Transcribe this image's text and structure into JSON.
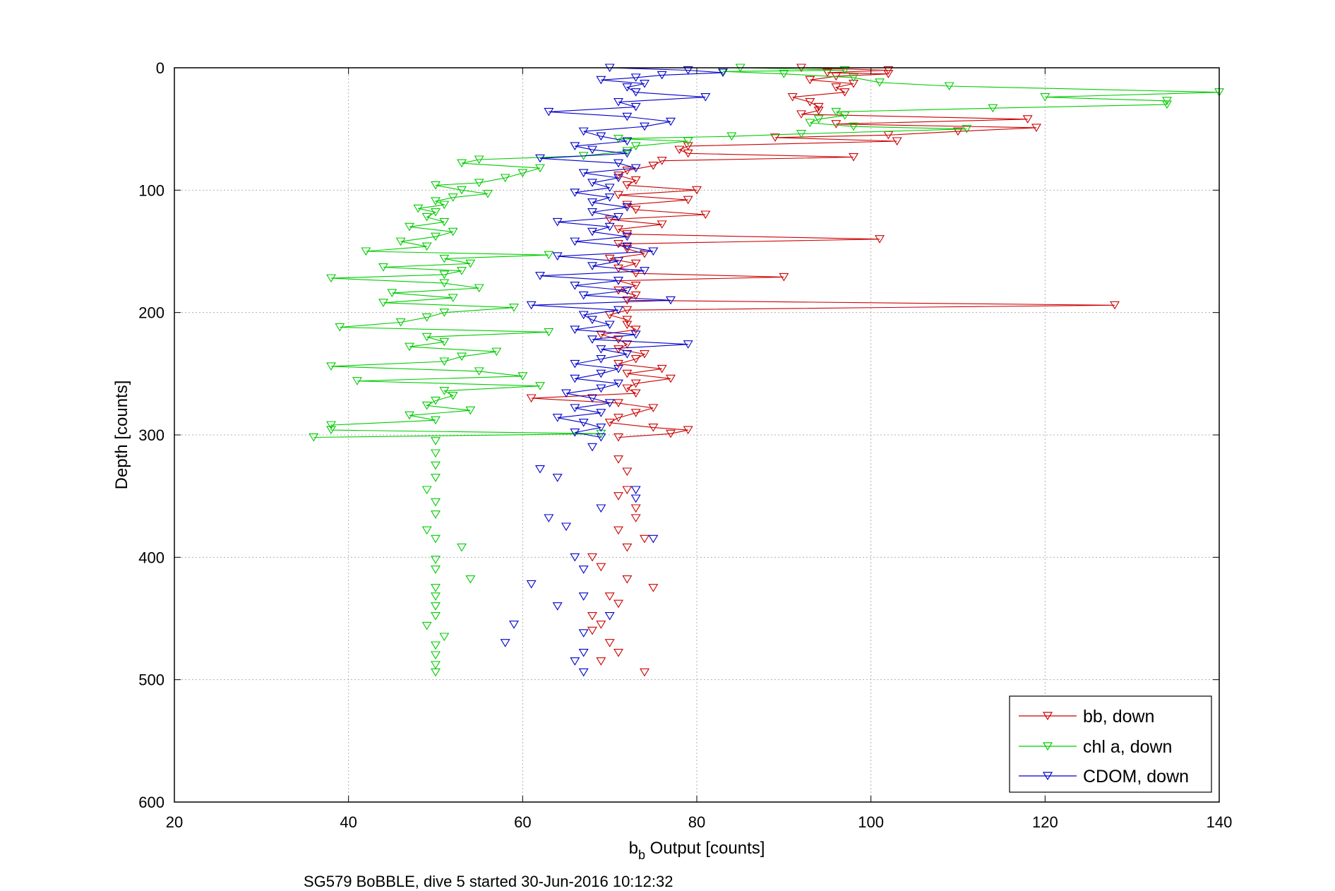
{
  "chart_data": {
    "type": "line",
    "caption": "SG579 BoBBLE, dive 5 started 30-Jun-2016 10:12:32",
    "xlabel": {
      "main": "b",
      "sub": "b",
      "rest": " Output [counts]"
    },
    "ylabel": "Depth [counts]",
    "xlim": [
      20,
      140
    ],
    "ylim": [
      0,
      600
    ],
    "y_reversed": true,
    "grid": true,
    "x_ticks": [
      "20",
      "40",
      "60",
      "80",
      "100",
      "120",
      "140"
    ],
    "y_ticks": [
      "0",
      "100",
      "200",
      "300",
      "400",
      "500",
      "600"
    ],
    "legend_position": "bottom-right",
    "series": [
      {
        "name": "bb, down",
        "color": "#cc0000",
        "marker": "triangle-down",
        "profile": [
          [
            0,
            92
          ],
          [
            2,
            102
          ],
          [
            4,
            95
          ],
          [
            5,
            102
          ],
          [
            7,
            96
          ],
          [
            10,
            93
          ],
          [
            13,
            98
          ],
          [
            16,
            96
          ],
          [
            20,
            97
          ],
          [
            24,
            91
          ],
          [
            28,
            93
          ],
          [
            32,
            94
          ],
          [
            35,
            94
          ],
          [
            38,
            92
          ],
          [
            42,
            118
          ],
          [
            46,
            96
          ],
          [
            49,
            119
          ],
          [
            52,
            110
          ],
          [
            55,
            102
          ],
          [
            57,
            89
          ],
          [
            60,
            103
          ],
          [
            64,
            79
          ],
          [
            67,
            78
          ],
          [
            70,
            79
          ],
          [
            73,
            98
          ],
          [
            76,
            76
          ],
          [
            80,
            75
          ],
          [
            84,
            72
          ],
          [
            88,
            71
          ],
          [
            92,
            73
          ],
          [
            96,
            72
          ],
          [
            100,
            80
          ],
          [
            104,
            71
          ],
          [
            108,
            79
          ],
          [
            112,
            72
          ],
          [
            116,
            73
          ],
          [
            120,
            81
          ],
          [
            124,
            70
          ],
          [
            128,
            76
          ],
          [
            132,
            71
          ],
          [
            136,
            72
          ],
          [
            140,
            101
          ],
          [
            144,
            71
          ],
          [
            148,
            72
          ],
          [
            152,
            74
          ],
          [
            156,
            70
          ],
          [
            160,
            73
          ],
          [
            164,
            71
          ],
          [
            168,
            73
          ],
          [
            171,
            90
          ],
          [
            174,
            71
          ],
          [
            178,
            73
          ],
          [
            182,
            71
          ],
          [
            186,
            73
          ],
          [
            190,
            72
          ],
          [
            194,
            128
          ],
          [
            198,
            72
          ],
          [
            202,
            70
          ],
          [
            206,
            72
          ],
          [
            210,
            72
          ],
          [
            214,
            73
          ],
          [
            218,
            69
          ],
          [
            222,
            71
          ],
          [
            226,
            72
          ],
          [
            230,
            71
          ],
          [
            234,
            74
          ],
          [
            238,
            73
          ],
          [
            242,
            71
          ],
          [
            246,
            76
          ],
          [
            250,
            72
          ],
          [
            254,
            77
          ],
          [
            258,
            73
          ],
          [
            262,
            72
          ],
          [
            266,
            73
          ],
          [
            270,
            61
          ],
          [
            274,
            71
          ],
          [
            278,
            75
          ],
          [
            282,
            73
          ],
          [
            286,
            71
          ],
          [
            290,
            70
          ],
          [
            294,
            75
          ],
          [
            296,
            79
          ],
          [
            299,
            77
          ],
          [
            302,
            71
          ]
        ],
        "scatter": [
          [
            320,
            71
          ],
          [
            330,
            72
          ],
          [
            345,
            72
          ],
          [
            350,
            71
          ],
          [
            360,
            73
          ],
          [
            368,
            73
          ],
          [
            378,
            71
          ],
          [
            385,
            74
          ],
          [
            392,
            72
          ],
          [
            400,
            68
          ],
          [
            408,
            69
          ],
          [
            418,
            72
          ],
          [
            425,
            75
          ],
          [
            432,
            70
          ],
          [
            438,
            71
          ],
          [
            448,
            68
          ],
          [
            455,
            69
          ],
          [
            460,
            68
          ],
          [
            470,
            70
          ],
          [
            478,
            71
          ],
          [
            485,
            69
          ],
          [
            494,
            74
          ]
        ]
      },
      {
        "name": "chl a, down",
        "color": "#00cc00",
        "marker": "triangle-down",
        "profile": [
          [
            0,
            85
          ],
          [
            2,
            97
          ],
          [
            3,
            83
          ],
          [
            5,
            90
          ],
          [
            8,
            98
          ],
          [
            12,
            101
          ],
          [
            15,
            109
          ],
          [
            20,
            140
          ],
          [
            24,
            120
          ],
          [
            27,
            134
          ],
          [
            30,
            134
          ],
          [
            33,
            114
          ],
          [
            36,
            96
          ],
          [
            39,
            97
          ],
          [
            42,
            94
          ],
          [
            45,
            93
          ],
          [
            48,
            98
          ],
          [
            50,
            111
          ],
          [
            54,
            92
          ],
          [
            56,
            84
          ],
          [
            58,
            71
          ],
          [
            60,
            79
          ],
          [
            64,
            73
          ],
          [
            68,
            72
          ],
          [
            72,
            67
          ],
          [
            75,
            55
          ],
          [
            78,
            53
          ],
          [
            82,
            62
          ],
          [
            86,
            60
          ],
          [
            90,
            58
          ],
          [
            94,
            55
          ],
          [
            96,
            50
          ],
          [
            100,
            53
          ],
          [
            103,
            56
          ],
          [
            106,
            52
          ],
          [
            109,
            50
          ],
          [
            112,
            51
          ],
          [
            115,
            48
          ],
          [
            118,
            50
          ],
          [
            122,
            49
          ],
          [
            126,
            51
          ],
          [
            130,
            47
          ],
          [
            134,
            52
          ],
          [
            138,
            50
          ],
          [
            142,
            46
          ],
          [
            146,
            49
          ],
          [
            150,
            42
          ],
          [
            153,
            63
          ],
          [
            156,
            51
          ],
          [
            160,
            54
          ],
          [
            163,
            44
          ],
          [
            166,
            53
          ],
          [
            169,
            51
          ],
          [
            172,
            38
          ],
          [
            176,
            51
          ],
          [
            180,
            55
          ],
          [
            184,
            45
          ],
          [
            188,
            52
          ],
          [
            192,
            44
          ],
          [
            196,
            59
          ],
          [
            200,
            51
          ],
          [
            204,
            49
          ],
          [
            208,
            46
          ],
          [
            212,
            39
          ],
          [
            216,
            63
          ],
          [
            220,
            49
          ],
          [
            224,
            51
          ],
          [
            228,
            47
          ],
          [
            232,
            57
          ],
          [
            236,
            53
          ],
          [
            240,
            51
          ],
          [
            244,
            38
          ],
          [
            248,
            55
          ],
          [
            252,
            60
          ],
          [
            256,
            41
          ],
          [
            260,
            62
          ],
          [
            264,
            51
          ],
          [
            268,
            52
          ],
          [
            272,
            50
          ],
          [
            276,
            49
          ],
          [
            280,
            54
          ],
          [
            284,
            47
          ],
          [
            288,
            50
          ],
          [
            292,
            38
          ],
          [
            296,
            38
          ],
          [
            299,
            69
          ],
          [
            302,
            36
          ]
        ],
        "scatter": [
          [
            305,
            50
          ],
          [
            315,
            50
          ],
          [
            325,
            50
          ],
          [
            335,
            50
          ],
          [
            345,
            49
          ],
          [
            355,
            50
          ],
          [
            365,
            50
          ],
          [
            378,
            49
          ],
          [
            385,
            50
          ],
          [
            392,
            53
          ],
          [
            402,
            50
          ],
          [
            410,
            50
          ],
          [
            418,
            54
          ],
          [
            425,
            50
          ],
          [
            432,
            50
          ],
          [
            440,
            50
          ],
          [
            448,
            50
          ],
          [
            456,
            49
          ],
          [
            465,
            51
          ],
          [
            472,
            50
          ],
          [
            480,
            50
          ],
          [
            488,
            50
          ],
          [
            494,
            50
          ]
        ]
      },
      {
        "name": "CDOM, down",
        "color": "#0000cc",
        "marker": "triangle-down",
        "profile": [
          [
            0,
            70
          ],
          [
            2,
            79
          ],
          [
            4,
            83
          ],
          [
            6,
            76
          ],
          [
            8,
            73
          ],
          [
            10,
            69
          ],
          [
            13,
            74
          ],
          [
            16,
            72
          ],
          [
            20,
            73
          ],
          [
            24,
            81
          ],
          [
            28,
            71
          ],
          [
            32,
            73
          ],
          [
            36,
            63
          ],
          [
            40,
            72
          ],
          [
            44,
            77
          ],
          [
            48,
            74
          ],
          [
            52,
            67
          ],
          [
            56,
            69
          ],
          [
            60,
            72
          ],
          [
            64,
            66
          ],
          [
            67,
            68
          ],
          [
            70,
            72
          ],
          [
            74,
            62
          ],
          [
            78,
            71
          ],
          [
            82,
            73
          ],
          [
            86,
            67
          ],
          [
            90,
            71
          ],
          [
            94,
            68
          ],
          [
            98,
            70
          ],
          [
            102,
            66
          ],
          [
            106,
            70
          ],
          [
            110,
            68
          ],
          [
            114,
            72
          ],
          [
            118,
            68
          ],
          [
            122,
            71
          ],
          [
            126,
            64
          ],
          [
            130,
            70
          ],
          [
            134,
            68
          ],
          [
            138,
            72
          ],
          [
            142,
            66
          ],
          [
            146,
            72
          ],
          [
            150,
            75
          ],
          [
            154,
            64
          ],
          [
            158,
            71
          ],
          [
            162,
            68
          ],
          [
            166,
            74
          ],
          [
            170,
            62
          ],
          [
            174,
            71
          ],
          [
            178,
            66
          ],
          [
            182,
            72
          ],
          [
            186,
            67
          ],
          [
            190,
            77
          ],
          [
            194,
            61
          ],
          [
            198,
            71
          ],
          [
            202,
            67
          ],
          [
            206,
            68
          ],
          [
            210,
            70
          ],
          [
            214,
            66
          ],
          [
            218,
            73
          ],
          [
            222,
            68
          ],
          [
            226,
            79
          ],
          [
            230,
            69
          ],
          [
            234,
            72
          ],
          [
            238,
            69
          ],
          [
            242,
            66
          ],
          [
            246,
            71
          ],
          [
            250,
            69
          ],
          [
            254,
            66
          ],
          [
            258,
            71
          ],
          [
            262,
            69
          ],
          [
            266,
            65
          ],
          [
            270,
            68
          ],
          [
            274,
            70
          ],
          [
            278,
            66
          ],
          [
            282,
            69
          ],
          [
            286,
            64
          ],
          [
            290,
            67
          ],
          [
            294,
            69
          ],
          [
            298,
            66
          ],
          [
            302,
            69
          ]
        ],
        "scatter": [
          [
            310,
            68
          ],
          [
            328,
            62
          ],
          [
            335,
            64
          ],
          [
            345,
            73
          ],
          [
            352,
            73
          ],
          [
            360,
            69
          ],
          [
            368,
            63
          ],
          [
            375,
            65
          ],
          [
            385,
            75
          ],
          [
            400,
            66
          ],
          [
            410,
            67
          ],
          [
            422,
            61
          ],
          [
            432,
            67
          ],
          [
            440,
            64
          ],
          [
            448,
            70
          ],
          [
            455,
            59
          ],
          [
            462,
            67
          ],
          [
            470,
            58
          ],
          [
            478,
            67
          ],
          [
            485,
            66
          ],
          [
            494,
            67
          ]
        ]
      }
    ]
  }
}
